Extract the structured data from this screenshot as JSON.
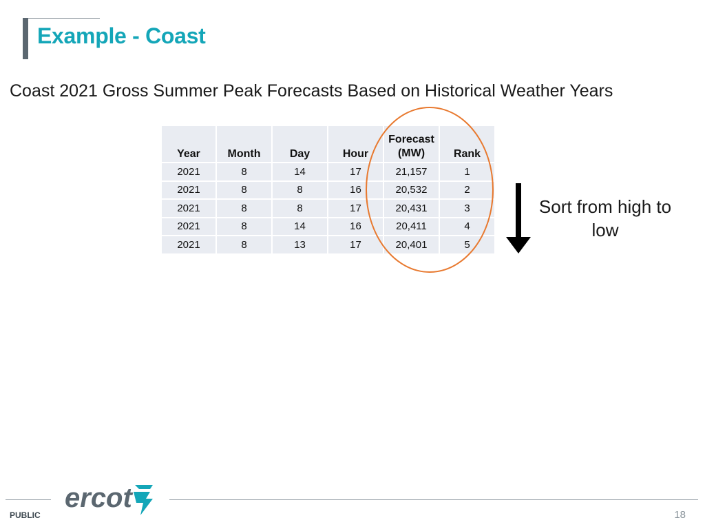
{
  "slide": {
    "title": "Example - Coast",
    "subtitle": "Coast 2021 Gross Summer Peak Forecasts Based on Historical Weather Years"
  },
  "table": {
    "headers": [
      "Year",
      "Month",
      "Day",
      "Hour",
      "Forecast\n(MW)",
      "Rank"
    ],
    "rows": [
      [
        "2021",
        "8",
        "14",
        "17",
        "21,157",
        "1"
      ],
      [
        "2021",
        "8",
        "8",
        "16",
        "20,532",
        "2"
      ],
      [
        "2021",
        "8",
        "8",
        "17",
        "20,431",
        "3"
      ],
      [
        "2021",
        "8",
        "14",
        "16",
        "20,411",
        "4"
      ],
      [
        "2021",
        "8",
        "13",
        "17",
        "20,401",
        "5"
      ]
    ]
  },
  "annotation": {
    "sort_note": "Sort from high to low",
    "highlight_color": "#e8792f"
  },
  "footer": {
    "logo_text": "ercot",
    "classification": "PUBLIC",
    "page_number": "18"
  },
  "colors": {
    "title": "#14a6b8",
    "accent_bar": "#5b6770",
    "table_cell": "#e9ecf2",
    "logo": "#5b6770",
    "logo_mark": "#14a6b8"
  }
}
